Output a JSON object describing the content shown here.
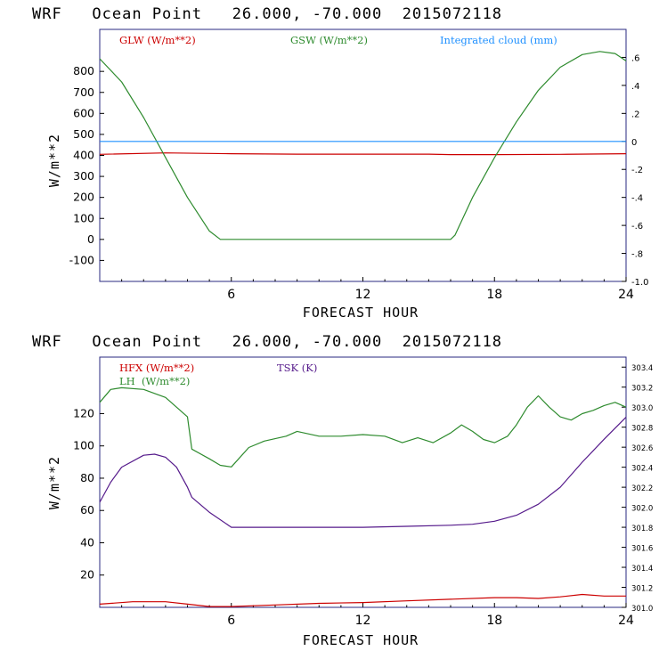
{
  "chart_data": [
    {
      "type": "line",
      "title": "WRF   Ocean Point   26.000, -70.000  2015072118",
      "xlabel": "FORECAST HOUR",
      "ylabel": "W/m**2",
      "xlim": [
        0,
        24
      ],
      "ylim": [
        -200,
        1000
      ],
      "xticks": [
        "6",
        "12",
        "18",
        "24"
      ],
      "yticks": [
        "-100",
        "0",
        "100",
        "200",
        "300",
        "400",
        "500",
        "600",
        "700",
        "800"
      ],
      "y2lim": [
        -1.0,
        0.8
      ],
      "y2ticks": [
        "-1.0",
        "-.8",
        "-.6",
        "-.4",
        "-.2",
        "0",
        ".2",
        ".4",
        ".6"
      ],
      "series": [
        {
          "name": "GLW (W/m**2)",
          "axis": "left",
          "color": "#cc0000",
          "x": [
            0,
            3,
            6,
            9,
            12,
            15,
            16,
            18,
            21,
            24
          ],
          "y": [
            405,
            412,
            408,
            406,
            406,
            406,
            404,
            404,
            405,
            408
          ]
        },
        {
          "name": "GSW (W/m**2)",
          "axis": "left",
          "color": "#2e8b2e",
          "x": [
            0,
            1,
            2,
            3,
            4,
            5,
            5.5,
            6,
            8,
            10,
            12,
            14,
            16,
            16.2,
            17,
            18,
            19,
            20,
            21,
            22,
            22.8,
            23.5,
            24
          ],
          "y": [
            860,
            750,
            580,
            390,
            200,
            40,
            0,
            0,
            0,
            0,
            0,
            0,
            0,
            20,
            200,
            390,
            560,
            710,
            820,
            880,
            895,
            885,
            850
          ]
        },
        {
          "name": "Integrated cloud (mm)",
          "axis": "right",
          "color": "#1e90ff",
          "x": [
            0,
            24
          ],
          "y": [
            0,
            0
          ]
        }
      ]
    },
    {
      "type": "line",
      "title": "WRF   Ocean Point   26.000, -70.000  2015072118",
      "xlabel": "FORECAST HOUR",
      "ylabel": "W/m**2",
      "xlim": [
        0,
        24
      ],
      "ylim": [
        0,
        155
      ],
      "xticks": [
        "6",
        "12",
        "18",
        "24"
      ],
      "yticks": [
        "20",
        "40",
        "60",
        "80",
        "100",
        "120"
      ],
      "y2lim": [
        301.0,
        303.5
      ],
      "y2ticks": [
        "301.0",
        "301.2",
        "301.4",
        "301.6",
        "301.8",
        "302.0",
        "302.2",
        "302.4",
        "302.6",
        "302.8",
        "303.0",
        "303.2",
        "303.4"
      ],
      "series": [
        {
          "name": "HFX (W/m**2)",
          "axis": "left",
          "color": "#cc0000",
          "x": [
            0,
            1.5,
            3,
            4,
            5,
            6,
            8,
            10,
            12,
            14,
            16,
            18,
            19,
            20,
            21,
            22,
            23,
            24
          ],
          "y": [
            2,
            3.5,
            3.5,
            2,
            0.5,
            0.5,
            1.5,
            2.5,
            3,
            4,
            5,
            6,
            6,
            5.5,
            6.5,
            8,
            7,
            7
          ]
        },
        {
          "name": "LH  (W/m**2)",
          "axis": "left",
          "color": "#2e8b2e",
          "x": [
            0,
            0.5,
            1,
            2,
            3,
            4,
            4.2,
            5,
            5.5,
            6,
            6.8,
            7.5,
            8.5,
            9,
            10,
            11,
            12,
            13,
            13.8,
            14.5,
            15.2,
            16,
            16.5,
            17,
            17.5,
            18,
            18.6,
            19,
            19.5,
            20,
            20.5,
            21,
            21.5,
            22,
            22.5,
            23,
            23.5,
            24
          ],
          "y": [
            127,
            135,
            136,
            135,
            130,
            118,
            98,
            92,
            88,
            87,
            99,
            103,
            106,
            109,
            106,
            106,
            107,
            106,
            102,
            105,
            102,
            108,
            113,
            109,
            104,
            102,
            106,
            113,
            124,
            131,
            124,
            118,
            116,
            120,
            122,
            125,
            127,
            124
          ]
        },
        {
          "name": "TSK (K)",
          "axis": "right",
          "color": "#551a8b",
          "x": [
            0,
            0.5,
            1,
            2,
            2.5,
            3,
            3.5,
            4,
            4.2,
            5,
            6,
            8,
            10,
            12,
            14,
            16,
            17,
            18,
            19,
            20,
            21,
            22,
            23,
            24
          ],
          "y": [
            302.05,
            302.25,
            302.4,
            302.52,
            302.53,
            302.5,
            302.4,
            302.2,
            302.1,
            301.95,
            301.8,
            301.8,
            301.8,
            301.8,
            301.81,
            301.82,
            301.83,
            301.86,
            301.92,
            302.03,
            302.2,
            302.45,
            302.68,
            302.9
          ]
        }
      ]
    }
  ]
}
